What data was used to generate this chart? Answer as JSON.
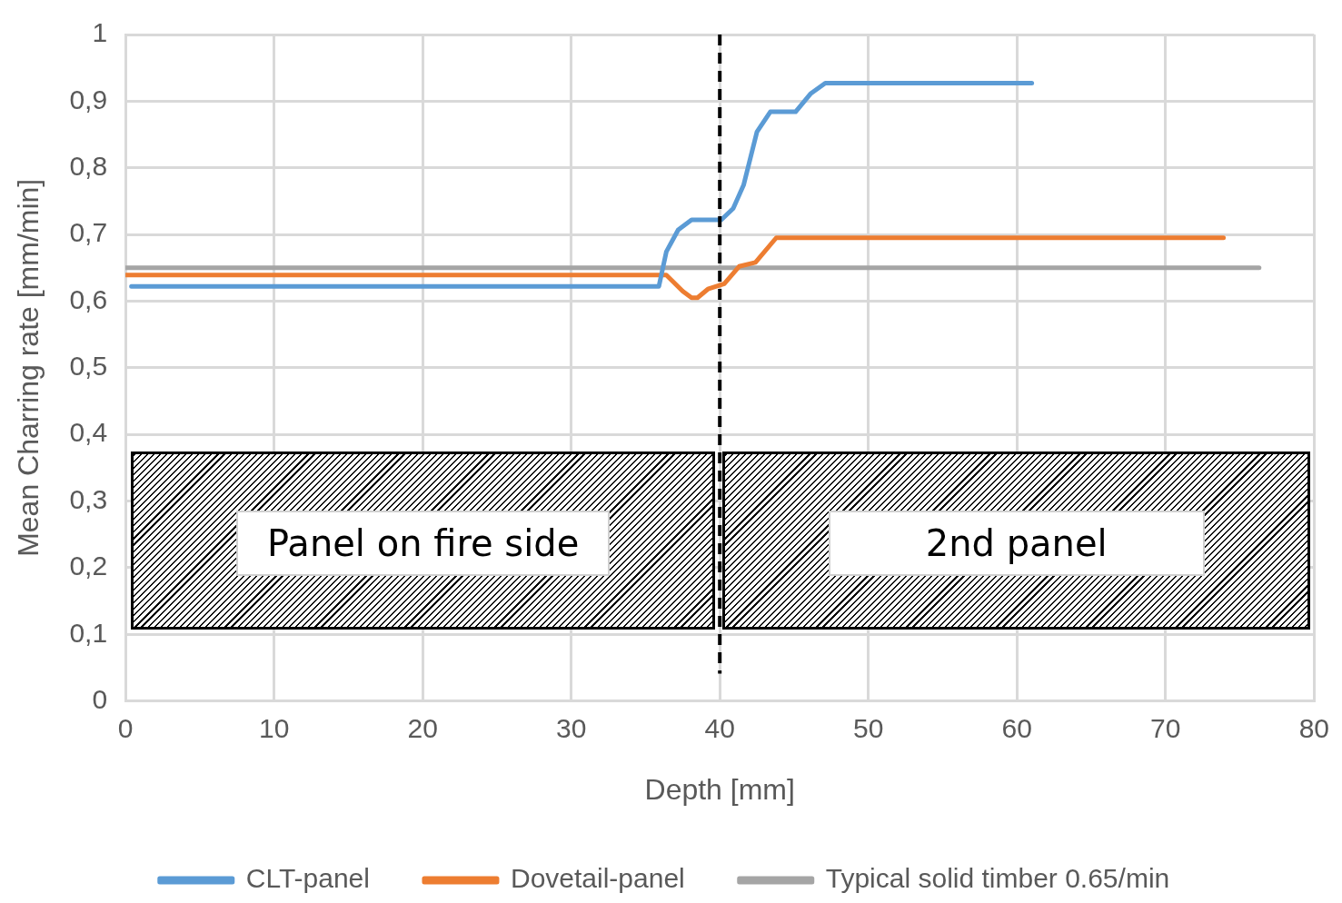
{
  "chart_data": {
    "type": "line",
    "xlabel": "Depth [mm]",
    "ylabel": "Mean Charring rate [mm/min]",
    "xlim": [
      0,
      80
    ],
    "xticks": [
      0,
      10,
      20,
      30,
      40,
      50,
      60,
      70,
      80
    ],
    "ylim": [
      0,
      1
    ],
    "yticks": [
      0,
      {
        "value": 0.1,
        "label": "0,1"
      },
      {
        "value": 0.2,
        "label": "0,2"
      },
      {
        "value": 0.3,
        "label": "0,3"
      },
      {
        "value": 0.4,
        "label": "0,4"
      },
      {
        "value": 0.5,
        "label": "0,5"
      },
      {
        "value": 0.6,
        "label": "0,6"
      },
      {
        "value": 0.7,
        "label": "0,7"
      },
      {
        "value": 0.8,
        "label": "0,8"
      },
      {
        "value": 0.9,
        "label": "0,9"
      },
      1
    ],
    "grid": true,
    "legend": "bottom",
    "marker": "none",
    "line_style": "solid",
    "series": [
      {
        "name": "CLT-panel",
        "color": "#5b9bd5",
        "x": [
          0.4,
          35.9,
          36.4,
          37.2,
          38.1,
          40.1,
          40.9,
          41.6,
          42.5,
          43.4,
          45.1,
          46.1,
          47.1,
          61.0
        ],
        "values": [
          0.622,
          0.622,
          0.674,
          0.707,
          0.722,
          0.722,
          0.739,
          0.774,
          0.854,
          0.884,
          0.884,
          0.911,
          0.927,
          0.927
        ]
      },
      {
        "name": "Dovetail-panel",
        "color": "#ed7d31",
        "x": [
          0,
          36.4,
          37.5,
          38.1,
          38.5,
          39.2,
          40.3,
          41.3,
          42.4,
          43.8,
          73.9
        ],
        "values": [
          0.639,
          0.639,
          0.615,
          0.605,
          0.605,
          0.618,
          0.626,
          0.652,
          0.658,
          0.695,
          0.695
        ]
      },
      {
        "name": "Typical solid timber 0.65/min",
        "color": "#a5a5a5",
        "x": [
          0,
          76.3
        ],
        "values": [
          0.65,
          0.65
        ]
      }
    ],
    "ref_lines": [
      {
        "axis": "x",
        "value": 40,
        "color": "#000000",
        "line_style": "dashed"
      }
    ],
    "annotations": [
      "Panel on fire side",
      "2nd panel"
    ]
  }
}
